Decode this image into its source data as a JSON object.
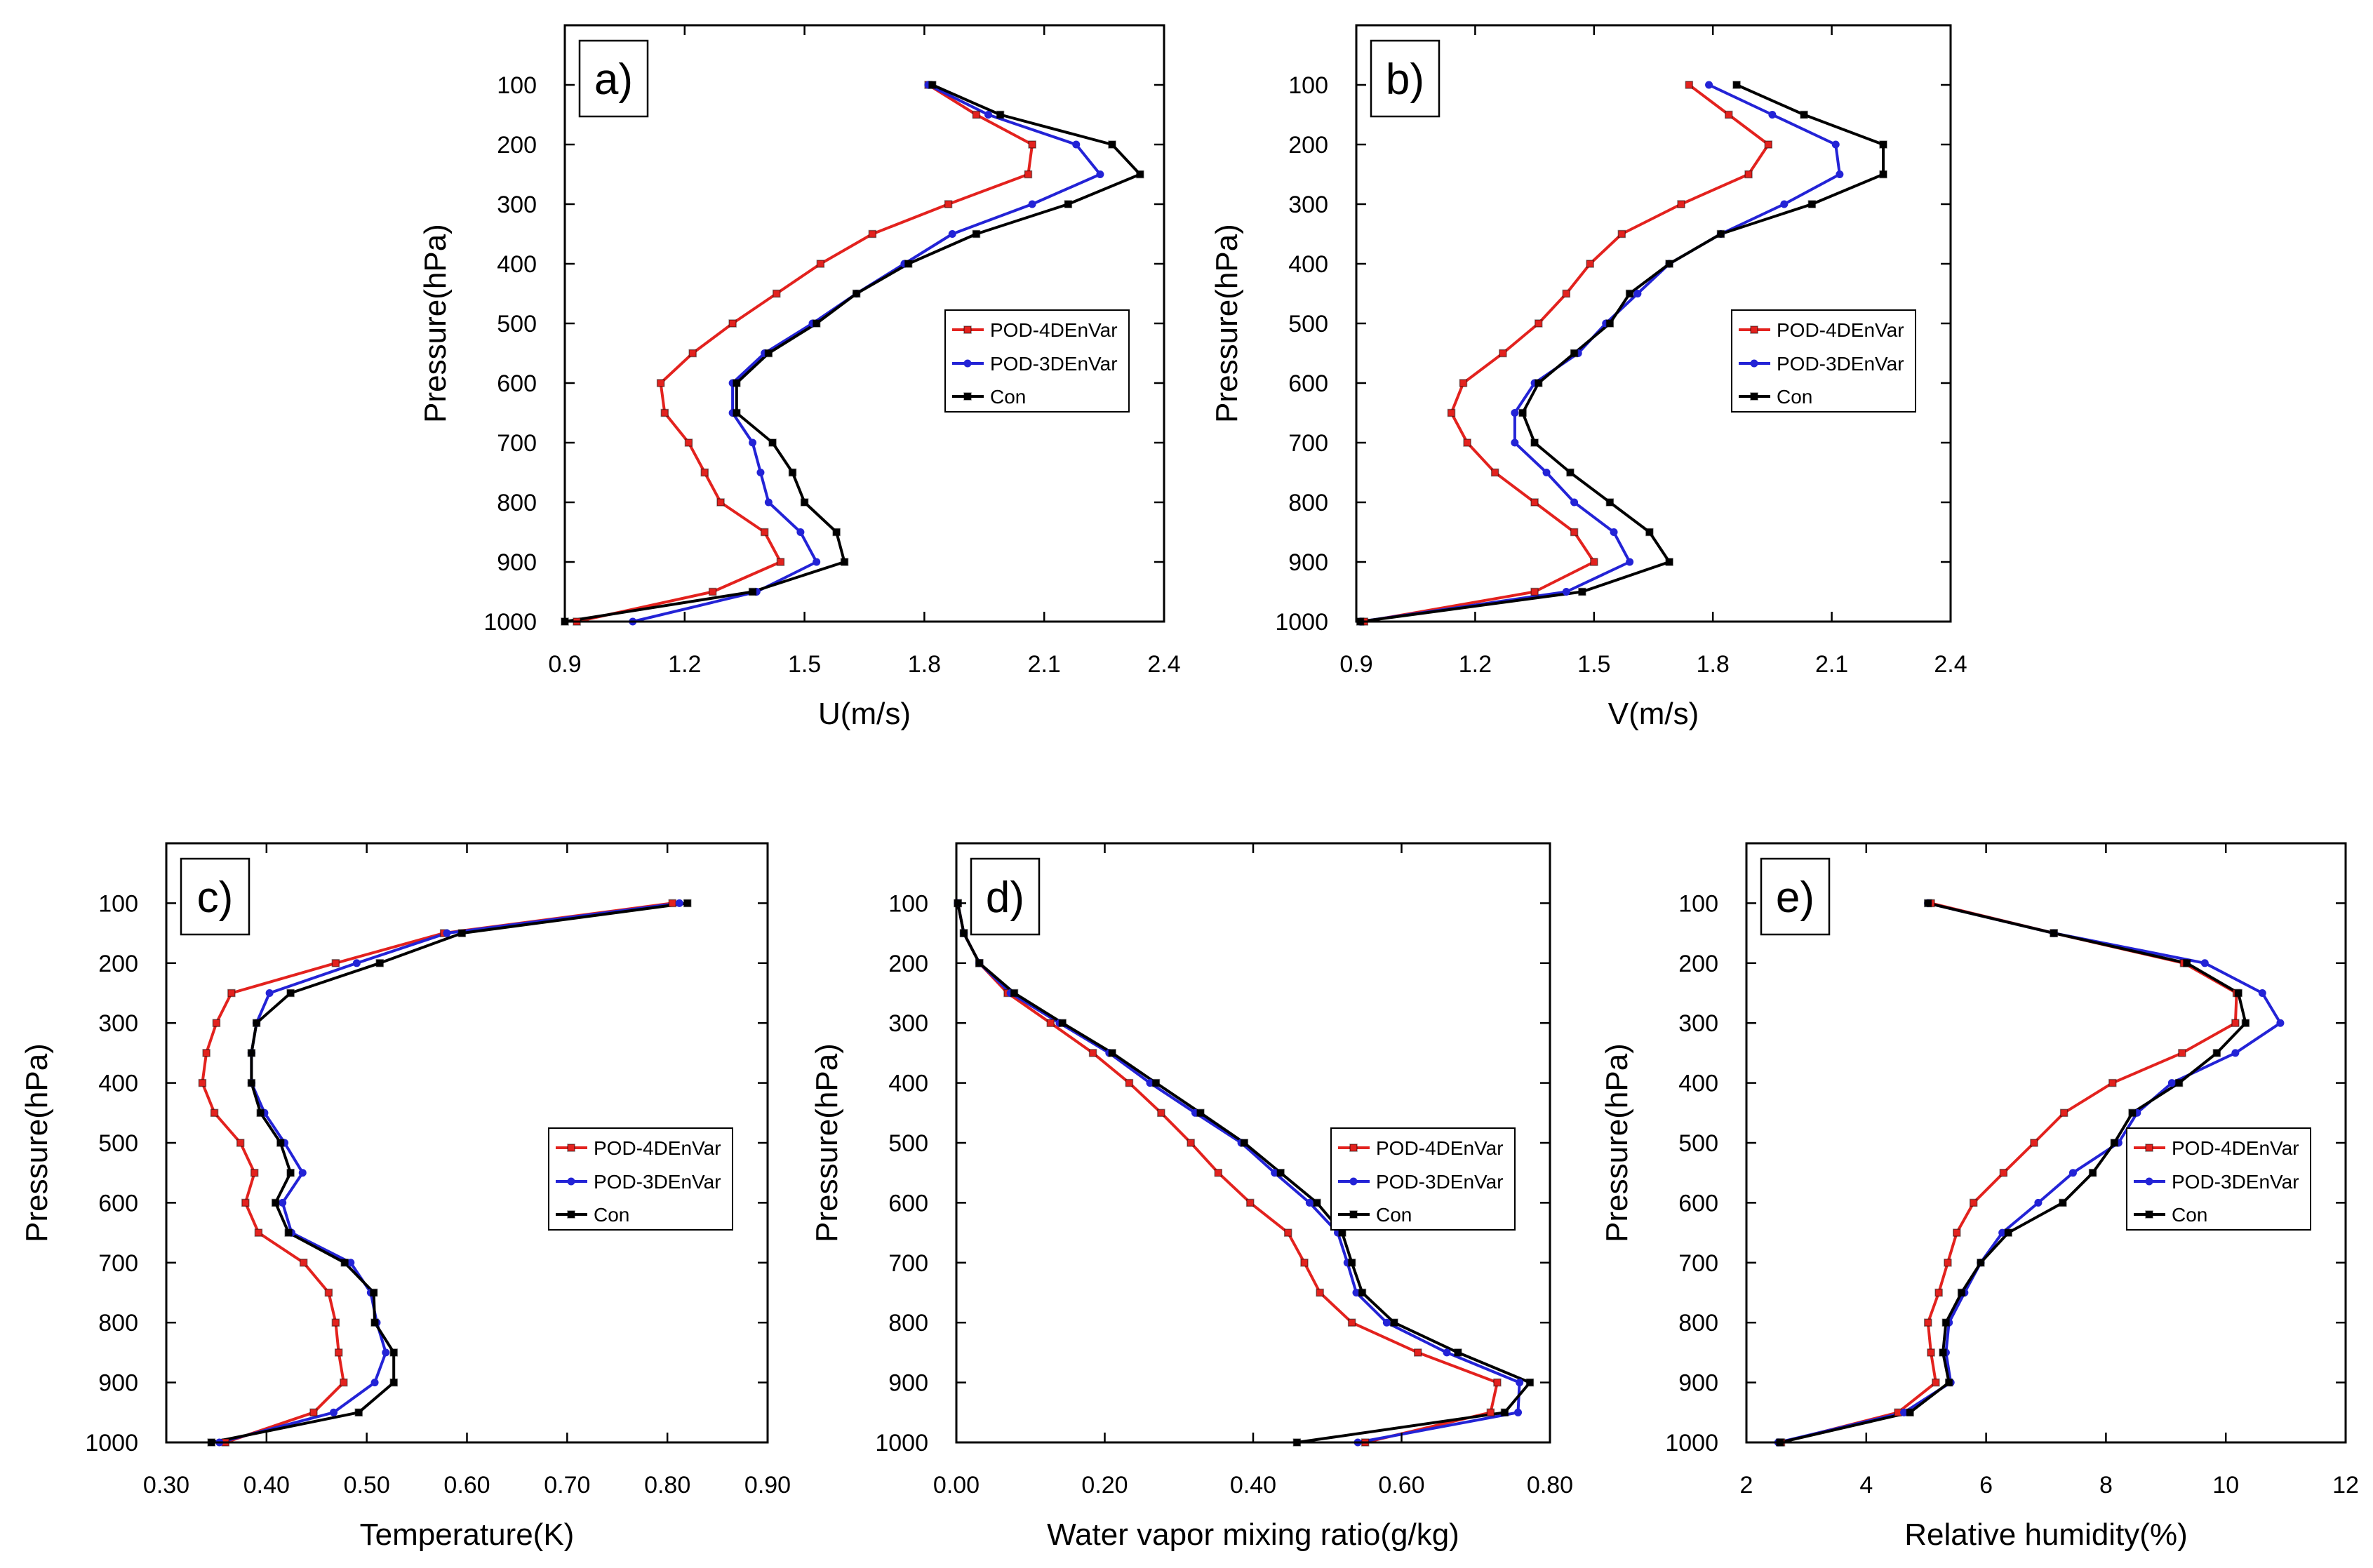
{
  "chart_data": [
    {
      "type": "line",
      "panel_label": "a)",
      "xlabel": "U(m/s)",
      "ylabel": "Pressure(hPa)",
      "xlim": [
        0.9,
        2.4
      ],
      "xticks": [
        0.9,
        1.2,
        1.5,
        1.8,
        2.1,
        2.4
      ],
      "xtick_labels": [
        "0.9",
        "1.2",
        "1.5",
        "1.8",
        "2.1",
        "2.4"
      ],
      "ylim": [
        0,
        1000
      ],
      "y_inverted": true,
      "yticks": [
        100,
        200,
        300,
        400,
        500,
        600,
        700,
        800,
        900,
        1000
      ],
      "ytick_labels": [
        "100",
        "200",
        "300",
        "400",
        "500",
        "600",
        "700",
        "800",
        "900",
        "1000"
      ],
      "y": [
        100,
        150,
        200,
        250,
        300,
        350,
        400,
        450,
        500,
        550,
        600,
        650,
        700,
        750,
        800,
        850,
        900,
        950,
        1000
      ],
      "series": [
        {
          "name": "POD-4DEnVar",
          "color": "#e3221e",
          "values": [
            1.81,
            1.93,
            2.07,
            2.06,
            1.86,
            1.67,
            1.54,
            1.43,
            1.32,
            1.22,
            1.14,
            1.15,
            1.21,
            1.25,
            1.29,
            1.4,
            1.44,
            1.27,
            0.93
          ]
        },
        {
          "name": "POD-3DEnVar",
          "color": "#2323d6",
          "values": [
            1.81,
            1.96,
            2.18,
            2.24,
            2.07,
            1.87,
            1.75,
            1.63,
            1.52,
            1.4,
            1.32,
            1.32,
            1.37,
            1.39,
            1.41,
            1.49,
            1.53,
            1.38,
            1.07
          ]
        },
        {
          "name": "Con",
          "color": "#000000",
          "values": [
            1.82,
            1.99,
            2.27,
            2.34,
            2.16,
            1.93,
            1.76,
            1.63,
            1.53,
            1.41,
            1.33,
            1.33,
            1.42,
            1.47,
            1.5,
            1.58,
            1.6,
            1.37,
            0.9
          ]
        }
      ]
    },
    {
      "type": "line",
      "panel_label": "b)",
      "xlabel": "V(m/s)",
      "ylabel": "Pressure(hPa)",
      "xlim": [
        0.9,
        2.4
      ],
      "xticks": [
        0.9,
        1.2,
        1.5,
        1.8,
        2.1,
        2.4
      ],
      "xtick_labels": [
        "0.9",
        "1.2",
        "1.5",
        "1.8",
        "2.1",
        "2.4"
      ],
      "ylim": [
        0,
        1000
      ],
      "y_inverted": true,
      "yticks": [
        100,
        200,
        300,
        400,
        500,
        600,
        700,
        800,
        900,
        1000
      ],
      "ytick_labels": [
        "100",
        "200",
        "300",
        "400",
        "500",
        "600",
        "700",
        "800",
        "900",
        "1000"
      ],
      "y": [
        100,
        150,
        200,
        250,
        300,
        350,
        400,
        450,
        500,
        550,
        600,
        650,
        700,
        750,
        800,
        850,
        900,
        950,
        1000
      ],
      "series": [
        {
          "name": "POD-4DEnVar",
          "color": "#e3221e",
          "values": [
            1.74,
            1.84,
            1.94,
            1.89,
            1.72,
            1.57,
            1.49,
            1.43,
            1.36,
            1.27,
            1.17,
            1.14,
            1.18,
            1.25,
            1.35,
            1.45,
            1.5,
            1.35,
            0.92
          ]
        },
        {
          "name": "POD-3DEnVar",
          "color": "#2323d6",
          "values": [
            1.79,
            1.95,
            2.11,
            2.12,
            1.98,
            1.82,
            1.69,
            1.61,
            1.53,
            1.46,
            1.35,
            1.3,
            1.3,
            1.38,
            1.45,
            1.55,
            1.59,
            1.43,
            0.91
          ]
        },
        {
          "name": "Con",
          "color": "#000000",
          "values": [
            1.86,
            2.03,
            2.23,
            2.23,
            2.05,
            1.82,
            1.69,
            1.59,
            1.54,
            1.45,
            1.36,
            1.32,
            1.35,
            1.44,
            1.54,
            1.64,
            1.69,
            1.47,
            0.91
          ]
        }
      ]
    },
    {
      "type": "line",
      "panel_label": "c)",
      "xlabel": "Temperature(K)",
      "ylabel": "Pressure(hPa)",
      "xlim": [
        0.3,
        0.9
      ],
      "xticks": [
        0.3,
        0.4,
        0.5,
        0.6,
        0.7,
        0.8,
        0.9
      ],
      "xtick_labels": [
        "0.30",
        "0.40",
        "0.50",
        "0.60",
        "0.70",
        "0.80",
        "0.90"
      ],
      "ylim": [
        0,
        1000
      ],
      "y_inverted": true,
      "yticks": [
        100,
        200,
        300,
        400,
        500,
        600,
        700,
        800,
        900,
        1000
      ],
      "ytick_labels": [
        "100",
        "200",
        "300",
        "400",
        "500",
        "600",
        "700",
        "800",
        "900",
        "1000"
      ],
      "y": [
        100,
        150,
        200,
        250,
        300,
        350,
        400,
        450,
        500,
        550,
        600,
        650,
        700,
        750,
        800,
        850,
        900,
        950,
        1000
      ],
      "series": [
        {
          "name": "POD-4DEnVar",
          "color": "#e3221e",
          "values": [
            0.805,
            0.577,
            0.469,
            0.365,
            0.35,
            0.34,
            0.336,
            0.348,
            0.374,
            0.388,
            0.379,
            0.392,
            0.437,
            0.462,
            0.469,
            0.472,
            0.477,
            0.447,
            0.359
          ]
        },
        {
          "name": "POD-3DEnVar",
          "color": "#2323d6",
          "values": [
            0.812,
            0.58,
            0.49,
            0.403,
            0.39,
            0.385,
            0.385,
            0.398,
            0.418,
            0.436,
            0.416,
            0.425,
            0.484,
            0.504,
            0.51,
            0.519,
            0.508,
            0.467,
            0.353
          ]
        },
        {
          "name": "Con",
          "color": "#000000",
          "values": [
            0.82,
            0.595,
            0.513,
            0.424,
            0.39,
            0.385,
            0.385,
            0.394,
            0.414,
            0.424,
            0.409,
            0.422,
            0.478,
            0.507,
            0.508,
            0.527,
            0.527,
            0.492,
            0.345
          ]
        }
      ]
    },
    {
      "type": "line",
      "panel_label": "d)",
      "xlabel": "Water vapor mixing ratio(g/kg)",
      "ylabel": "Pressure(hPa)",
      "xlim": [
        0.0,
        0.8
      ],
      "xticks": [
        0.0,
        0.2,
        0.4,
        0.6,
        0.8
      ],
      "xtick_labels": [
        "0.00",
        "0.20",
        "0.40",
        "0.60",
        "0.80"
      ],
      "ylim": [
        0,
        1000
      ],
      "y_inverted": true,
      "yticks": [
        100,
        200,
        300,
        400,
        500,
        600,
        700,
        800,
        900,
        1000
      ],
      "ytick_labels": [
        "100",
        "200",
        "300",
        "400",
        "500",
        "600",
        "700",
        "800",
        "900",
        "1000"
      ],
      "y": [
        100,
        150,
        200,
        250,
        300,
        350,
        400,
        450,
        500,
        550,
        600,
        650,
        700,
        750,
        800,
        850,
        900,
        950,
        1000
      ],
      "series": [
        {
          "name": "POD-4DEnVar",
          "color": "#e3221e",
          "values": [
            0.002,
            0.01,
            0.031,
            0.069,
            0.127,
            0.184,
            0.233,
            0.276,
            0.316,
            0.353,
            0.396,
            0.447,
            0.469,
            0.49,
            0.533,
            0.622,
            0.729,
            0.72,
            0.551
          ]
        },
        {
          "name": "POD-3DEnVar",
          "color": "#2323d6",
          "values": [
            0.002,
            0.01,
            0.031,
            0.073,
            0.139,
            0.206,
            0.261,
            0.322,
            0.384,
            0.429,
            0.476,
            0.514,
            0.527,
            0.539,
            0.58,
            0.661,
            0.759,
            0.757,
            0.541
          ]
        },
        {
          "name": "Con",
          "color": "#000000",
          "values": [
            0.002,
            0.01,
            0.031,
            0.078,
            0.143,
            0.21,
            0.269,
            0.329,
            0.388,
            0.437,
            0.486,
            0.52,
            0.533,
            0.547,
            0.59,
            0.676,
            0.773,
            0.739,
            0.459
          ]
        }
      ]
    },
    {
      "type": "line",
      "panel_label": "e)",
      "xlabel": "Relative humidity(%)",
      "ylabel": "Pressure(hPa)",
      "xlim": [
        2,
        12
      ],
      "xticks": [
        2,
        4,
        6,
        8,
        10,
        12
      ],
      "xtick_labels": [
        "2",
        "4",
        "6",
        "8",
        "10",
        "12"
      ],
      "ylim": [
        0,
        1000
      ],
      "y_inverted": true,
      "yticks": [
        100,
        200,
        300,
        400,
        500,
        600,
        700,
        800,
        900,
        1000
      ],
      "ytick_labels": [
        "100",
        "200",
        "300",
        "400",
        "500",
        "600",
        "700",
        "800",
        "900",
        "1000"
      ],
      "y": [
        100,
        150,
        200,
        250,
        300,
        350,
        400,
        450,
        500,
        550,
        600,
        650,
        700,
        750,
        800,
        850,
        900,
        950,
        1000
      ],
      "series": [
        {
          "name": "POD-4DEnVar",
          "color": "#e3221e",
          "values": [
            5.08,
            7.13,
            9.3,
            10.18,
            10.16,
            9.27,
            8.11,
            7.3,
            6.8,
            6.29,
            5.79,
            5.51,
            5.36,
            5.21,
            5.03,
            5.08,
            5.16,
            4.53,
            2.58
          ]
        },
        {
          "name": "POD-3DEnVar",
          "color": "#2323d6",
          "values": [
            5.03,
            7.13,
            9.65,
            10.61,
            10.91,
            10.16,
            9.1,
            8.52,
            8.21,
            7.45,
            6.87,
            6.27,
            5.91,
            5.64,
            5.38,
            5.33,
            5.41,
            4.63,
            2.53
          ]
        },
        {
          "name": "Con",
          "color": "#000000",
          "values": [
            5.03,
            7.13,
            9.35,
            10.21,
            10.33,
            9.85,
            9.22,
            8.44,
            8.14,
            7.78,
            7.28,
            6.37,
            5.91,
            5.59,
            5.33,
            5.28,
            5.38,
            4.73,
            2.56
          ]
        }
      ]
    }
  ]
}
